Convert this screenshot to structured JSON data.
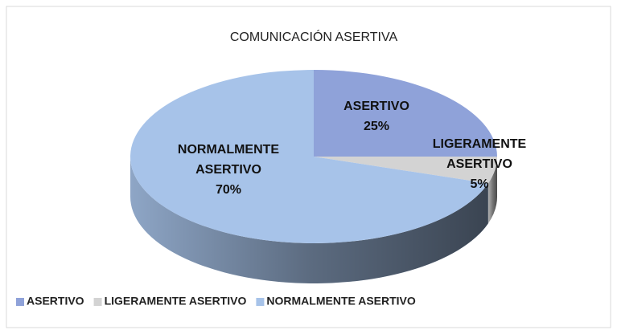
{
  "chart_data": {
    "type": "pie",
    "title": "COMUNICACIÓN ASERTIVA",
    "categories": [
      "ASERTIVO",
      "LIGERAMENTE ASERTIVO",
      "NORMALMENTE ASERTIVO"
    ],
    "values": [
      25,
      5,
      70
    ],
    "value_labels": [
      "25%",
      "5%",
      "70%"
    ],
    "colors": [
      "#8fa2d9",
      "#d3d3d3",
      "#a7c3e9"
    ],
    "legend": "bottom"
  }
}
